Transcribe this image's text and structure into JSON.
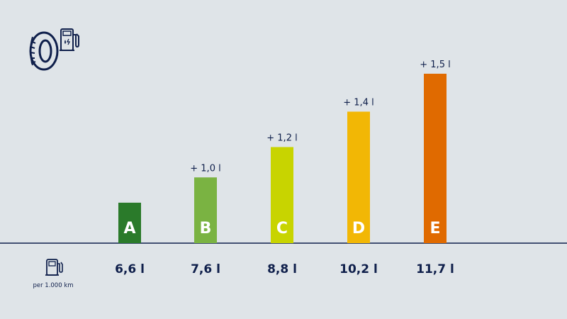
{
  "unit_label": "per 1.000 km",
  "colors": {
    "background": "#dfe4e8",
    "ink": "#0f1f4b",
    "baseline": "#0f1f4b"
  },
  "icons": {
    "header_tyre": "tyre-icon",
    "header_pump": "fuel-electric-pump-icon",
    "unit": "fuel-pump-icon"
  },
  "chart_data": {
    "type": "bar",
    "categories": [
      "A",
      "B",
      "C",
      "D",
      "E"
    ],
    "values": [
      6.6,
      7.6,
      8.8,
      10.2,
      11.7
    ],
    "value_labels": [
      "6,6 l",
      "7,6 l",
      "8,8 l",
      "10,2 l",
      "11,7 l"
    ],
    "delta_labels": [
      "",
      "+ 1,0 l",
      "+ 1,2 l",
      "+ 1,4 l",
      "+ 1,5 l"
    ],
    "bar_colors": [
      "#2a7a2a",
      "#7ab342",
      "#c8d400",
      "#f2b705",
      "#e06a00"
    ],
    "ylim": [
      5.0,
      11.7
    ],
    "grid": false,
    "legend": "none"
  }
}
